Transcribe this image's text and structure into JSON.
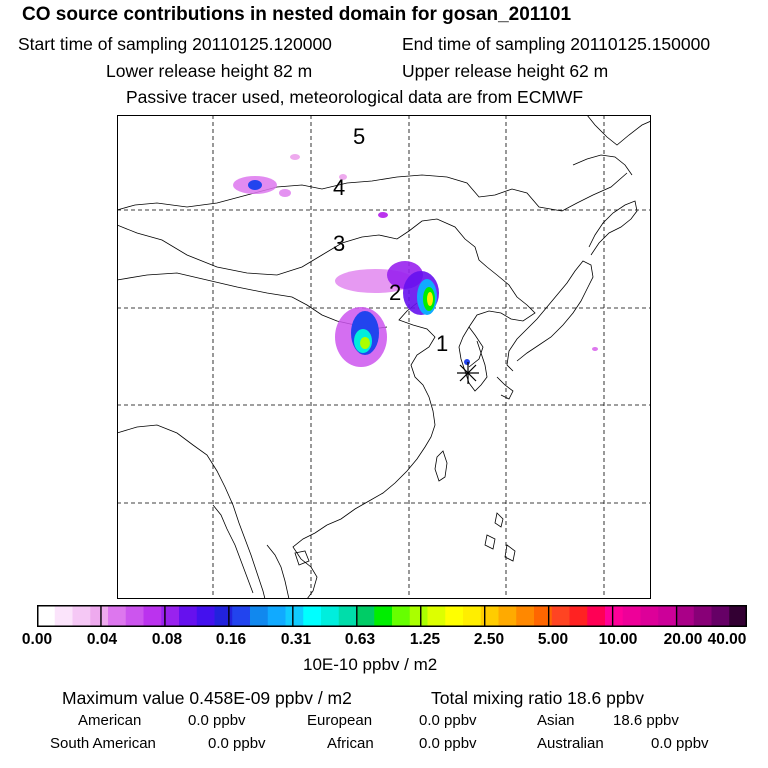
{
  "header": {
    "title": "CO  source contributions in nested domain for gosan_201101",
    "start_time": "Start time of sampling 20110125.120000",
    "end_time": "End time of sampling 20110125.150000",
    "lower_height": "Lower release height   82 m",
    "upper_height": "Upper release height   62 m",
    "tracer_note": "Passive tracer used, meteorological data are from ECMWF"
  },
  "map": {
    "labels": [
      "5",
      "4",
      "3",
      "2",
      "1"
    ]
  },
  "colorbar": {
    "ticks": [
      "0.00",
      "0.04",
      "0.08",
      "0.16",
      "0.31",
      "0.63",
      "1.25",
      "2.50",
      "5.00",
      "10.00",
      "20.00",
      "40.00"
    ],
    "colors": [
      "#ffffff",
      "#fbe4fb",
      "#f5c8f5",
      "#eeaaee",
      "#dd77ee",
      "#cc55ee",
      "#bb33ee",
      "#9922ee",
      "#6611ee",
      "#4411ee",
      "#2222dd",
      "#2244ee",
      "#1188ee",
      "#11aaff",
      "#11ccff",
      "#00ffff",
      "#00eedd",
      "#00ddaa",
      "#00cc66",
      "#00ee00",
      "#66ff00",
      "#aaff00",
      "#ddff00",
      "#ffff00",
      "#ffee00",
      "#ffcc00",
      "#ffaa00",
      "#ff8800",
      "#ff6600",
      "#ff4422",
      "#ff2222",
      "#ff0055",
      "#ff0099",
      "#ee0099",
      "#dd0099",
      "#cc0099",
      "#aa0088",
      "#880077",
      "#660066",
      "#330033"
    ],
    "unit": "10E-10 ppbv / m2"
  },
  "footer": {
    "max_value": "Maximum value  0.458E-09 ppbv / m2",
    "total_mixing": "Total mixing ratio       18.6 ppbv",
    "american_label": "American",
    "american_value": "0.0 ppbv",
    "european_label": "European",
    "european_value": "0.0 ppbv",
    "asian_label": "Asian",
    "asian_value": "18.6 ppbv",
    "south_american_label": "South American",
    "south_american_value": "0.0 ppbv",
    "african_label": "African",
    "african_value": "0.0 ppbv",
    "australian_label": "Australian",
    "australian_value": "0.0 ppbv"
  }
}
